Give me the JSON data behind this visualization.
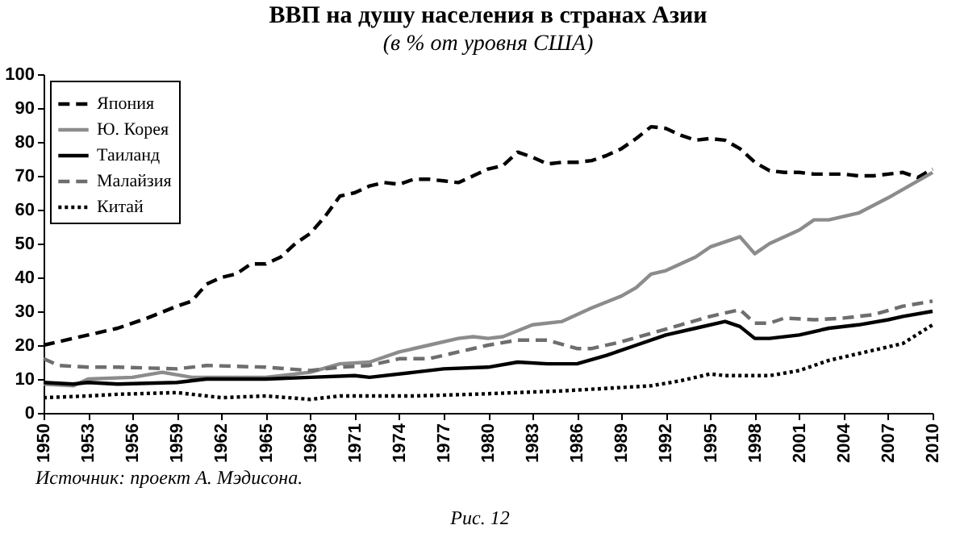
{
  "chart_data": {
    "type": "line",
    "title": "ВВП на душу населения в странах Азии",
    "subtitle": "(в % от уровня США)",
    "annotations": [
      "Источник: проект А. Мэдисона.",
      "Рис. 12"
    ],
    "xlim": [
      1950,
      2010
    ],
    "xticks": [
      1950,
      1953,
      1956,
      1959,
      1962,
      1965,
      1968,
      1971,
      1974,
      1977,
      1980,
      1983,
      1986,
      1989,
      1992,
      1995,
      1998,
      2001,
      2004,
      2007,
      2010
    ],
    "ylim": [
      0,
      100
    ],
    "yticks": [
      0,
      10,
      20,
      30,
      40,
      50,
      60,
      70,
      80,
      90,
      100
    ],
    "legend": "top left",
    "grid": false,
    "series": [
      {
        "name": "Япония",
        "color": "#000000",
        "line_style": "dashed",
        "x": [
          1950,
          1952,
          1953,
          1955,
          1957,
          1959,
          1960,
          1961,
          1962,
          1963,
          1964,
          1965,
          1966,
          1967,
          1968,
          1969,
          1970,
          1971,
          1972,
          1973,
          1974,
          1975,
          1976,
          1977,
          1978,
          1979,
          1980,
          1981,
          1982,
          1983,
          1984,
          1985,
          1986,
          1987,
          1988,
          1989,
          1990,
          1991,
          1992,
          1993,
          1994,
          1995,
          1996,
          1997,
          1998,
          1999,
          2000,
          2001,
          2002,
          2003,
          2004,
          2005,
          2006,
          2007,
          2008,
          2009,
          2010
        ],
        "values": [
          20,
          22,
          23,
          25,
          28,
          31.5,
          33,
          38,
          40,
          41,
          44,
          44,
          46,
          50,
          53,
          58,
          64,
          65,
          67,
          68,
          67.5,
          69,
          69,
          68.5,
          68,
          70,
          72,
          73,
          77,
          75.5,
          73.5,
          74,
          74,
          74.5,
          76,
          78,
          81,
          84.5,
          84,
          82,
          80.5,
          81,
          80.5,
          78,
          74,
          71.5,
          71,
          71,
          70.5,
          70.5,
          70.5,
          70,
          70,
          70.5,
          71,
          69.5,
          72
        ]
      },
      {
        "name": "Ю. Корея",
        "color": "#8c8c8c",
        "line_style": "solid",
        "x": [
          1950,
          1952,
          1953,
          1956,
          1958,
          1960,
          1962,
          1965,
          1968,
          1970,
          1972,
          1974,
          1976,
          1978,
          1979,
          1980,
          1981,
          1983,
          1985,
          1987,
          1989,
          1990,
          1991,
          1992,
          1994,
          1995,
          1997,
          1998,
          1999,
          2001,
          2002,
          2003,
          2005,
          2007,
          2008,
          2010
        ],
        "values": [
          8.5,
          8,
          10,
          10.5,
          12,
          10.5,
          10.5,
          10.5,
          12,
          14.5,
          15,
          18,
          20,
          22,
          22.5,
          22,
          22.5,
          26,
          27,
          31,
          34.5,
          37,
          41,
          42,
          46,
          49,
          52,
          47,
          50,
          54,
          57,
          57,
          59,
          63.5,
          66,
          71
        ]
      },
      {
        "name": "Таиланд",
        "color": "#000000",
        "line_style": "solid",
        "x": [
          1950,
          1952,
          1953,
          1955,
          1959,
          1961,
          1965,
          1968,
          1971,
          1972,
          1975,
          1977,
          1980,
          1982,
          1984,
          1986,
          1988,
          1990,
          1992,
          1994,
          1996,
          1997,
          1998,
          1999,
          2001,
          2003,
          2005,
          2007,
          2008,
          2010
        ],
        "values": [
          9,
          8.5,
          9,
          8.5,
          9,
          10,
          10,
          10.5,
          11,
          10.5,
          12,
          13,
          13.5,
          15,
          14.5,
          14.5,
          17,
          20,
          23,
          25,
          27,
          25.5,
          22,
          22,
          23,
          25,
          26,
          27.5,
          28.5,
          30
        ]
      },
      {
        "name": "Малайзия",
        "color": "#6e6e6e",
        "line_style": "dashed",
        "x": [
          1950,
          1951,
          1953,
          1955,
          1959,
          1961,
          1965,
          1968,
          1970,
          1972,
          1974,
          1976,
          1978,
          1980,
          1982,
          1984,
          1986,
          1987,
          1989,
          1991,
          1993,
          1995,
          1997,
          1998,
          1999,
          2000,
          2002,
          2004,
          2006,
          2008,
          2010
        ],
        "values": [
          16,
          14,
          13.5,
          13.5,
          13,
          14,
          13.5,
          12.5,
          13.5,
          14,
          16,
          16,
          18,
          20,
          21.5,
          21.5,
          19,
          19,
          21,
          23.5,
          26,
          28.5,
          30.5,
          26.5,
          26.5,
          28,
          27.5,
          28,
          29,
          31.5,
          33
        ]
      },
      {
        "name": "Китай",
        "color": "#000000",
        "line_style": "dotted",
        "x": [
          1950,
          1953,
          1955,
          1959,
          1962,
          1965,
          1968,
          1970,
          1975,
          1979,
          1982,
          1985,
          1989,
          1991,
          1993,
          1995,
          1996,
          1999,
          2001,
          2003,
          2005,
          2007,
          2008,
          2010
        ],
        "values": [
          4.5,
          5,
          5.5,
          6,
          4.5,
          5,
          4,
          5,
          5,
          5.5,
          6,
          6.5,
          7.5,
          8,
          9.5,
          11.5,
          11,
          11,
          12.5,
          15.5,
          17.5,
          19.5,
          20.5,
          26
        ]
      }
    ]
  }
}
